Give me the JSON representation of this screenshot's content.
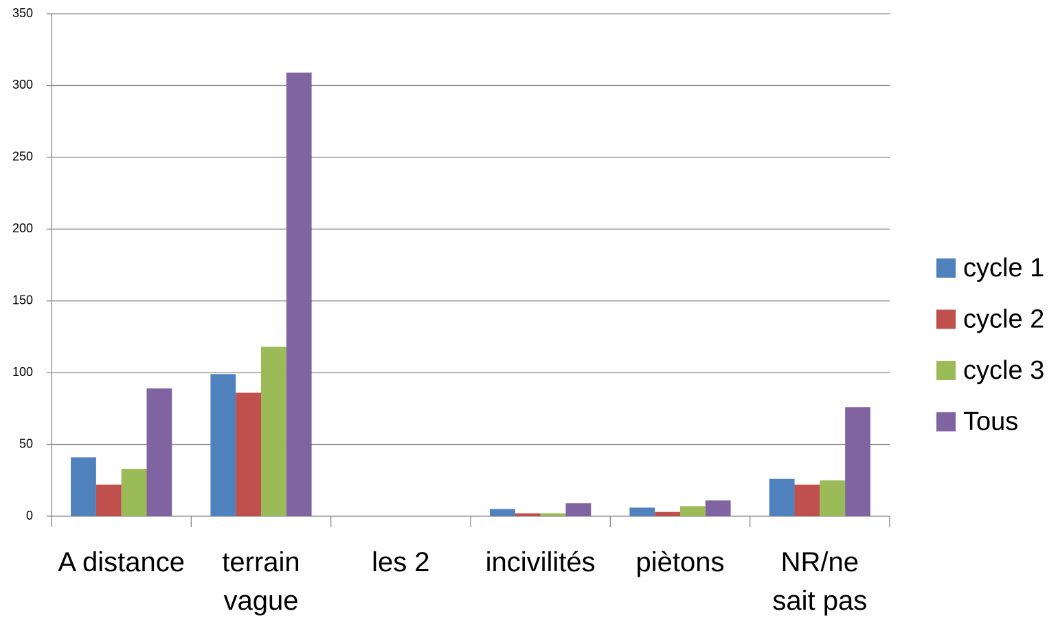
{
  "chart_data": {
    "type": "bar",
    "categories": [
      "A distance",
      "terrain\nvague",
      "les 2",
      "incivilités",
      "piètons",
      "NR/ne\nsait pas"
    ],
    "series": [
      {
        "name": "cycle 1",
        "color": "#4f81bd",
        "values": [
          41,
          99,
          0,
          5,
          6,
          26
        ]
      },
      {
        "name": "cycle 2",
        "color": "#c0504d",
        "values": [
          22,
          86,
          0,
          2,
          3,
          22
        ]
      },
      {
        "name": "cycle 3",
        "color": "#9bbb59",
        "values": [
          33,
          118,
          0,
          2,
          7,
          25
        ]
      },
      {
        "name": "Tous",
        "color": "#8064a2",
        "values": [
          89,
          309,
          0,
          9,
          11,
          76
        ]
      }
    ],
    "ylim": [
      0,
      350
    ],
    "yticks": [
      0,
      50,
      100,
      150,
      200,
      250,
      300,
      350
    ],
    "grid": true,
    "legend": "right"
  }
}
